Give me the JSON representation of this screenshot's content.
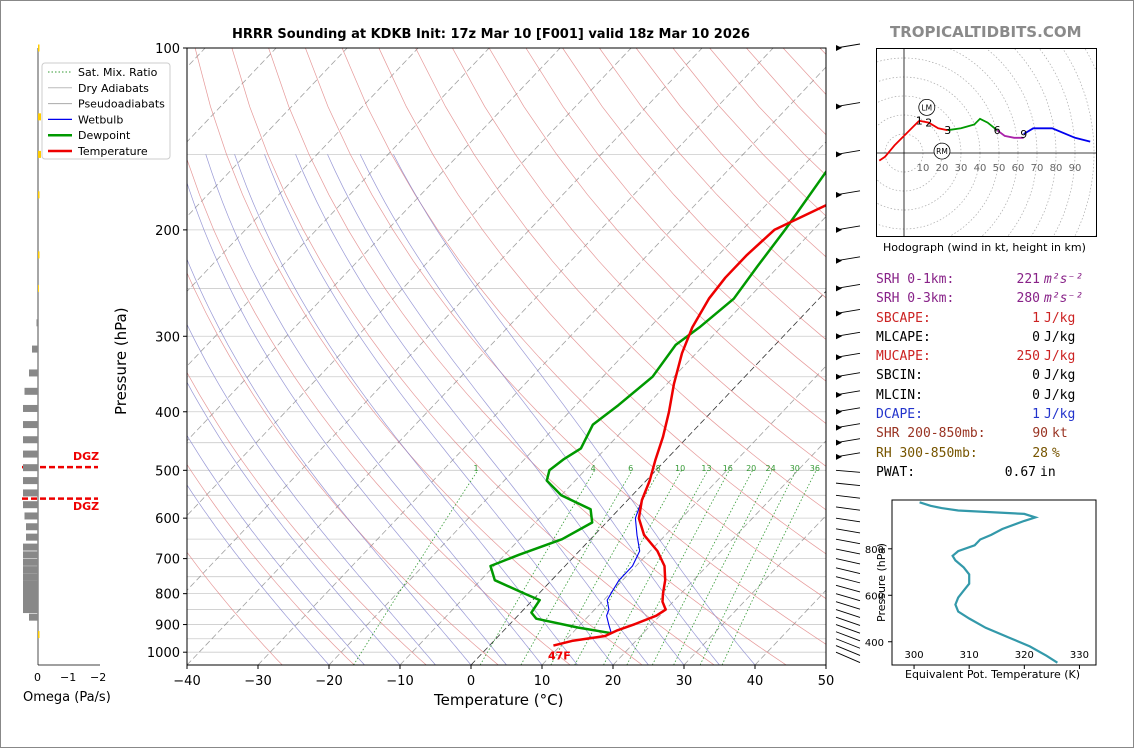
{
  "title": "HRRR Sounding at KDKB Init: 17z Mar 10 [F001] valid 18z Mar 10 2026",
  "brand": "TROPICALTIDBITS.COM",
  "chart_data": [
    {
      "type": "line",
      "name": "skew-t",
      "xlabel": "Temperature (°C)",
      "ylabel": "Pressure (hPa)",
      "xlim": [
        -40,
        50
      ],
      "ylim": [
        1050,
        100
      ],
      "y_scale": "log",
      "x_ticks": [
        "−40",
        "−30",
        "−20",
        "−10",
        "0",
        "10",
        "20",
        "30",
        "40",
        "50"
      ],
      "y_ticks": [
        "100",
        "200",
        "300",
        "400",
        "500",
        "600",
        "700",
        "800",
        "900",
        "1000"
      ],
      "legend": [
        "Sat. Mix. Ratio",
        "Dry Adiabats",
        "Pseudoadiabats",
        "Wetbulb",
        "Dewpoint",
        "Temperature"
      ],
      "legend_position": "top-left",
      "mixing_ratio_labels": [
        "1",
        "4",
        "6",
        "8",
        "10",
        "13",
        "16",
        "20",
        "24",
        "30",
        "36"
      ],
      "surface_label": "47F",
      "colors": {
        "temperature": "#ee0000",
        "dewpoint": "#009900",
        "wetbulb": "#0000ee",
        "sat_mix": "#339933",
        "dry_adiabat": "#e08080",
        "pseudoadiabat": "#8080cc"
      },
      "temperature": [
        [
          975,
          9
        ],
        [
          958,
          11
        ],
        [
          940,
          15
        ],
        [
          920,
          16
        ],
        [
          900,
          17.5
        ],
        [
          870,
          19.5
        ],
        [
          850,
          20
        ],
        [
          825,
          18.5
        ],
        [
          800,
          17.5
        ],
        [
          760,
          16
        ],
        [
          720,
          14
        ],
        [
          680,
          11
        ],
        [
          640,
          7
        ],
        [
          600,
          4
        ],
        [
          560,
          2
        ],
        [
          520,
          0.5
        ],
        [
          480,
          -1.5
        ],
        [
          440,
          -3.5
        ],
        [
          400,
          -6
        ],
        [
          360,
          -9
        ],
        [
          320,
          -12
        ],
        [
          290,
          -14
        ],
        [
          260,
          -15.5
        ],
        [
          240,
          -16
        ],
        [
          220,
          -16
        ],
        [
          200,
          -15.5
        ],
        [
          180,
          -11
        ],
        [
          150,
          -5
        ],
        [
          130,
          -0.5
        ],
        [
          120,
          0.5
        ],
        [
          100,
          2
        ]
      ],
      "dewpoint": [
        [
          930,
          15.5
        ],
        [
          910,
          10
        ],
        [
          880,
          3
        ],
        [
          860,
          1.5
        ],
        [
          820,
          1
        ],
        [
          800,
          -2
        ],
        [
          760,
          -8
        ],
        [
          720,
          -10.5
        ],
        [
          690,
          -8
        ],
        [
          650,
          -4
        ],
        [
          610,
          -2
        ],
        [
          580,
          -4
        ],
        [
          550,
          -10
        ],
        [
          520,
          -14
        ],
        [
          500,
          -15
        ],
        [
          480,
          -14.5
        ],
        [
          460,
          -13.5
        ],
        [
          420,
          -15
        ],
        [
          390,
          -14
        ],
        [
          350,
          -13
        ],
        [
          310,
          -14
        ],
        [
          290,
          -13
        ],
        [
          260,
          -12
        ],
        [
          230,
          -13
        ],
        [
          200,
          -14
        ],
        [
          160,
          -16
        ],
        [
          130,
          -18
        ],
        [
          120,
          -17.5
        ],
        [
          100,
          -15
        ]
      ],
      "wetbulb": [
        [
          930,
          15.5
        ],
        [
          900,
          14
        ],
        [
          870,
          12.5
        ],
        [
          850,
          12
        ],
        [
          820,
          10.5
        ],
        [
          790,
          10
        ],
        [
          760,
          9.5
        ],
        [
          720,
          9.5
        ],
        [
          680,
          8.5
        ],
        [
          640,
          6
        ],
        [
          600,
          3.5
        ],
        [
          560,
          2
        ],
        [
          520,
          0.5
        ],
        [
          480,
          -1.5
        ],
        [
          440,
          -3.5
        ],
        [
          400,
          -6
        ],
        [
          360,
          -9
        ],
        [
          320,
          -12
        ],
        [
          290,
          -14
        ],
        [
          260,
          -15.5
        ],
        [
          240,
          -16
        ],
        [
          220,
          -16
        ],
        [
          200,
          -15.5
        ],
        [
          180,
          -11
        ],
        [
          150,
          -5
        ],
        [
          130,
          -1
        ],
        [
          120,
          0
        ],
        [
          100,
          2
        ]
      ],
      "dgz_pressures": [
        494,
        557
      ],
      "dgz_label": "DGZ"
    },
    {
      "type": "bar",
      "name": "omega",
      "xlabel": "Omega (Pa/s)",
      "x_ticks": [
        "0",
        "−1",
        "−2"
      ],
      "values": [
        [
          100,
          -0.05
        ],
        [
          130,
          -0.1
        ],
        [
          150,
          -0.1
        ],
        [
          175,
          -0.05
        ],
        [
          220,
          -0.05
        ],
        [
          250,
          -0.03
        ],
        [
          285,
          0.05
        ],
        [
          315,
          0.2
        ],
        [
          345,
          0.3
        ],
        [
          370,
          0.45
        ],
        [
          395,
          0.5
        ],
        [
          420,
          0.5
        ],
        [
          445,
          0.5
        ],
        [
          470,
          0.5
        ],
        [
          495,
          0.5
        ],
        [
          520,
          0.5
        ],
        [
          545,
          0.5
        ],
        [
          570,
          0.5
        ],
        [
          595,
          0.45
        ],
        [
          620,
          0.4
        ],
        [
          645,
          0.4
        ],
        [
          670,
          0.5
        ],
        [
          690,
          0.5
        ],
        [
          710,
          0.5
        ],
        [
          730,
          0.5
        ],
        [
          750,
          0.5
        ],
        [
          770,
          0.5
        ],
        [
          790,
          0.5
        ],
        [
          810,
          0.5
        ],
        [
          830,
          0.5
        ],
        [
          850,
          0.5
        ],
        [
          875,
          0.3
        ],
        [
          935,
          -0.05
        ]
      ]
    },
    {
      "type": "line",
      "name": "hodograph",
      "xlabel": "Hodograph (wind in kt, height in km)",
      "ring_labels": [
        "10",
        "20",
        "30",
        "40",
        "50",
        "60",
        "70",
        "80",
        "90"
      ],
      "height_labels": [
        {
          "t": "1",
          "u": 8,
          "v": 17
        },
        {
          "t": "2",
          "u": 13,
          "v": 16
        },
        {
          "t": "3",
          "u": 23,
          "v": 12
        },
        {
          "t": "6",
          "u": 49,
          "v": 12
        },
        {
          "t": "9",
          "u": 63,
          "v": 10
        }
      ],
      "storm_motion": [
        {
          "t": "LM",
          "u": 12,
          "v": 24
        },
        {
          "t": "RM",
          "u": 20,
          "v": 1
        }
      ],
      "segments": [
        {
          "color": "#ee0000",
          "points": [
            [
              -13,
              -4
            ],
            [
              -10,
              -2
            ],
            [
              -5,
              4
            ],
            [
              0,
              9
            ],
            [
              5,
              14
            ],
            [
              8,
              17
            ]
          ]
        },
        {
          "color": "#ee0000",
          "points": [
            [
              8,
              17
            ],
            [
              13,
              16
            ],
            [
              18,
              13
            ],
            [
              23,
              12
            ]
          ]
        },
        {
          "color": "#009900",
          "points": [
            [
              23,
              12
            ],
            [
              30,
              13
            ],
            [
              37,
              15
            ],
            [
              40,
              18
            ],
            [
              44,
              16
            ],
            [
              49,
              12
            ]
          ]
        },
        {
          "color": "#aa22aa",
          "points": [
            [
              49,
              12
            ],
            [
              53,
              9
            ],
            [
              58,
              8
            ],
            [
              63,
              8
            ]
          ]
        },
        {
          "color": "#0000ee",
          "points": [
            [
              63,
              10
            ],
            [
              68,
              13
            ],
            [
              72,
              13
            ],
            [
              78,
              13
            ],
            [
              90,
              8
            ],
            [
              98,
              6
            ]
          ]
        }
      ]
    },
    {
      "type": "line",
      "name": "theta-e",
      "xlabel": "Equivalent Pot. Temperature (K)",
      "ylabel": "Pressure (hPa)",
      "xlim": [
        296,
        333
      ],
      "ylim": [
        1010,
        300
      ],
      "x_ticks": [
        "300",
        "310",
        "320",
        "330"
      ],
      "y_ticks": [
        "400",
        "600",
        "800"
      ],
      "color": "#3399aa",
      "points": [
        [
          1000,
          301
        ],
        [
          985,
          303
        ],
        [
          975,
          305
        ],
        [
          965,
          308
        ],
        [
          950,
          320
        ],
        [
          935,
          322
        ],
        [
          920,
          320
        ],
        [
          885,
          316
        ],
        [
          860,
          314
        ],
        [
          840,
          312
        ],
        [
          815,
          311
        ],
        [
          790,
          308
        ],
        [
          770,
          307
        ],
        [
          750,
          307.5
        ],
        [
          720,
          309
        ],
        [
          690,
          310
        ],
        [
          650,
          310
        ],
        [
          620,
          309
        ],
        [
          590,
          308
        ],
        [
          560,
          307.5
        ],
        [
          530,
          308
        ],
        [
          500,
          310
        ],
        [
          460,
          313
        ],
        [
          420,
          317
        ],
        [
          380,
          321
        ],
        [
          340,
          324
        ],
        [
          310,
          326
        ]
      ]
    }
  ],
  "stats": [
    {
      "label": "SRH 0-1km:",
      "value": "221",
      "unit": "m²s⁻²",
      "color": "#882288"
    },
    {
      "label": "SRH 0-3km:",
      "value": "280",
      "unit": "m²s⁻²",
      "color": "#882288"
    },
    {
      "label": "SBCAPE:",
      "value": "1",
      "unit": "J/kg",
      "color": "#cc2222"
    },
    {
      "label": "MLCAPE:",
      "value": "0",
      "unit": "J/kg",
      "color": "#000000"
    },
    {
      "label": "MUCAPE:",
      "value": "250",
      "unit": "J/kg",
      "color": "#cc2222"
    },
    {
      "label": "SBCIN:",
      "value": "0",
      "unit": "J/kg",
      "color": "#000000"
    },
    {
      "label": "MLCIN:",
      "value": "0",
      "unit": "J/kg",
      "color": "#000000"
    },
    {
      "label": "DCAPE:",
      "value": "1",
      "unit": "J/kg",
      "color": "#2233cc"
    },
    {
      "label": "SHR 200-850mb:",
      "value": "90",
      "unit": "kt",
      "color": "#993322"
    },
    {
      "label": "RH 300-850mb:",
      "value": "28",
      "unit": "%",
      "color": "#775500"
    },
    {
      "label": "PWAT:",
      "value": "0.67",
      "unit": "in",
      "color": "#000000"
    }
  ]
}
